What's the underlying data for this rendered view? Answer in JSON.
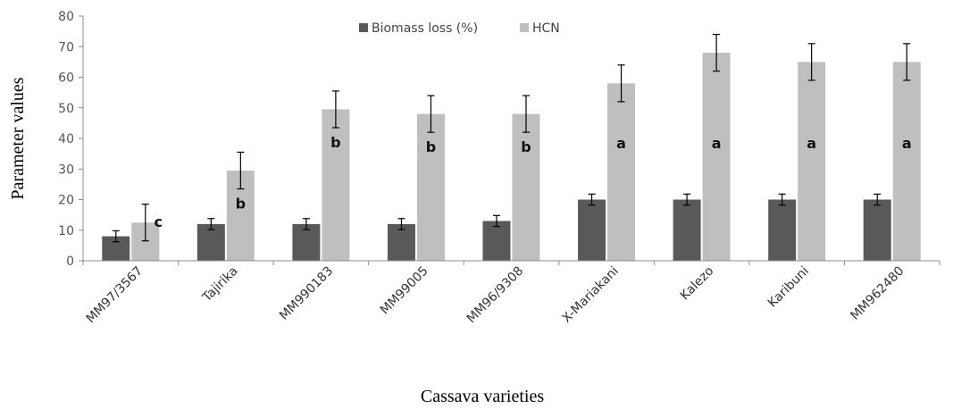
{
  "chart_data": {
    "type": "bar",
    "title": "",
    "xlabel": "Cassava varieties",
    "ylabel": "Parameter values",
    "ylim": [
      0,
      80
    ],
    "yticks": [
      0,
      10,
      20,
      30,
      40,
      50,
      60,
      70,
      80
    ],
    "grid": false,
    "legend_position": "top-center",
    "categories": [
      "MM97/3567",
      "Tajirika",
      "MM990183",
      "MM99005",
      "MM96/9308",
      "X-Mariakani",
      "Kalezo",
      "Karibuni",
      "MM962480"
    ],
    "series": [
      {
        "name": "Biomass loss (%)",
        "color": "#595959",
        "values": [
          8,
          12,
          12,
          12,
          13,
          20,
          20,
          20,
          20
        ],
        "error": [
          1.8,
          1.8,
          1.8,
          1.8,
          1.8,
          1.8,
          1.8,
          1.8,
          1.8
        ]
      },
      {
        "name": "HCN",
        "color": "#bfbfbf",
        "values": [
          12.5,
          29.5,
          49.5,
          48,
          48,
          58,
          68,
          65,
          65
        ],
        "error": [
          6,
          6,
          6,
          6,
          6,
          6,
          6,
          6,
          6
        ],
        "significance": [
          "c",
          "b",
          "b",
          "b",
          "b",
          "a",
          "a",
          "a",
          "a"
        ]
      }
    ]
  }
}
